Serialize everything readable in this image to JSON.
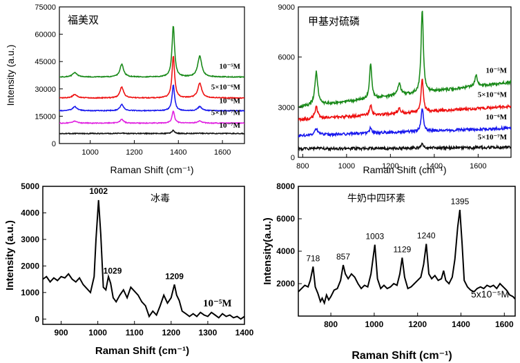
{
  "chart_data": [
    {
      "type": "line",
      "title": "福美双",
      "xlabel": "Raman Shift (cm⁻¹)",
      "ylabel": "Intensity (a.u.)",
      "xlim": [
        860,
        1700
      ],
      "ylim": [
        0,
        75000
      ],
      "xticks": [
        1000,
        1200,
        1400,
        1600
      ],
      "yticks": [
        0,
        15000,
        30000,
        45000,
        60000,
        75000
      ],
      "series": [
        {
          "name": "10⁻⁵M",
          "color": "#1a8a1a",
          "baseline": 36500,
          "peaks": [
            [
              930,
              2500,
              12
            ],
            [
              1143,
              7000,
              10
            ],
            [
              1377,
              28000,
              7
            ],
            [
              1497,
              11500,
              11
            ]
          ]
        },
        {
          "name": "5×10⁻⁶M",
          "color": "#ee1111",
          "baseline": 25000,
          "peaks": [
            [
              930,
              2000,
              12
            ],
            [
              1143,
              6000,
              10
            ],
            [
              1377,
              23000,
              7
            ],
            [
              1497,
              8000,
              11
            ]
          ]
        },
        {
          "name": "10⁻⁶M",
          "color": "#1a1aee",
          "baseline": 18000,
          "peaks": [
            [
              930,
              2200,
              12
            ],
            [
              1143,
              3500,
              10
            ],
            [
              1377,
              14000,
              7
            ],
            [
              1497,
              2200,
              11
            ]
          ]
        },
        {
          "name": "5×10⁻⁷M",
          "color": "#e020e0",
          "baseline": 11200,
          "peaks": [
            [
              930,
              1200,
              12
            ],
            [
              1143,
              2000,
              10
            ],
            [
              1377,
              6500,
              7
            ],
            [
              1497,
              1300,
              11
            ]
          ]
        },
        {
          "name": "10⁻⁷M",
          "color": "#111111",
          "baseline": 5500,
          "peaks": [
            [
              1143,
              300,
              10
            ],
            [
              1377,
              1800,
              7
            ],
            [
              1497,
              200,
              11
            ]
          ]
        }
      ]
    },
    {
      "type": "line",
      "title": "甲基对硫磷",
      "xlabel": "Raman Shift (cm⁻¹)",
      "ylabel": "",
      "xlim": [
        780,
        1750
      ],
      "ylim": [
        0,
        9000
      ],
      "xticks": [
        800,
        1000,
        1200,
        1400,
        1600
      ],
      "yticks": [
        0,
        3000,
        6000,
        9000
      ],
      "series": [
        {
          "name": "10⁻⁵M",
          "color": "#1a8a1a",
          "baseline": 3000,
          "slope": 1500,
          "peaks": [
            [
              862,
              2000,
              8
            ],
            [
              1110,
              2100,
              6
            ],
            [
              1240,
              700,
              8
            ],
            [
              1345,
              5000,
              6
            ],
            [
              1590,
              700,
              6
            ]
          ]
        },
        {
          "name": "5×10⁻⁶M",
          "color": "#ee1111",
          "baseline": 2250,
          "slope": 800,
          "peaks": [
            [
              862,
              700,
              8
            ],
            [
              1110,
              600,
              6
            ],
            [
              1240,
              300,
              8
            ],
            [
              1345,
              2000,
              6
            ]
          ]
        },
        {
          "name": "10⁻⁶M",
          "color": "#1a1aee",
          "baseline": 1300,
          "slope": 450,
          "peaks": [
            [
              862,
              400,
              8
            ],
            [
              1110,
              300,
              6
            ],
            [
              1345,
              1400,
              6
            ]
          ]
        },
        {
          "name": "5×10⁻⁷M",
          "color": "#111111",
          "baseline": 500,
          "slope": 100,
          "peaks": [
            [
              862,
              80,
              8
            ],
            [
              1345,
              250,
              6
            ]
          ]
        }
      ]
    },
    {
      "type": "line",
      "title": "冰毒",
      "xlabel": "Raman Shift (cm⁻¹)",
      "ylabel": "Intensity (a.u.)",
      "xlim": [
        850,
        1400
      ],
      "ylim": [
        -200,
        5000
      ],
      "xticks": [
        900,
        1000,
        1100,
        1200,
        1300,
        1400
      ],
      "yticks": [
        0,
        1000,
        2000,
        3000,
        4000,
        5000
      ],
      "annotation": "10⁻⁵M",
      "peak_labels": [
        {
          "label": "1002",
          "x": 1002,
          "y": 4500
        },
        {
          "label": "1029",
          "x": 1029,
          "y": 1500
        },
        {
          "label": "1209",
          "x": 1209,
          "y": 1300
        }
      ],
      "series": [
        {
          "name": "",
          "color": "#000000",
          "points": [
            [
              850,
              1500
            ],
            [
              860,
              1600
            ],
            [
              870,
              1400
            ],
            [
              880,
              1550
            ],
            [
              890,
              1450
            ],
            [
              900,
              1600
            ],
            [
              910,
              1550
            ],
            [
              920,
              1700
            ],
            [
              930,
              1500
            ],
            [
              940,
              1400
            ],
            [
              950,
              1550
            ],
            [
              960,
              1300
            ],
            [
              970,
              1150
            ],
            [
              980,
              1000
            ],
            [
              990,
              1600
            ],
            [
              995,
              3000
            ],
            [
              1002,
              4480
            ],
            [
              1008,
              3200
            ],
            [
              1015,
              1200
            ],
            [
              1022,
              1100
            ],
            [
              1029,
              1600
            ],
            [
              1035,
              1350
            ],
            [
              1042,
              800
            ],
            [
              1050,
              650
            ],
            [
              1060,
              900
            ],
            [
              1070,
              1100
            ],
            [
              1080,
              800
            ],
            [
              1090,
              1200
            ],
            [
              1100,
              1050
            ],
            [
              1110,
              900
            ],
            [
              1120,
              650
            ],
            [
              1130,
              500
            ],
            [
              1140,
              100
            ],
            [
              1150,
              300
            ],
            [
              1160,
              150
            ],
            [
              1170,
              500
            ],
            [
              1180,
              900
            ],
            [
              1190,
              600
            ],
            [
              1200,
              800
            ],
            [
              1209,
              1300
            ],
            [
              1215,
              900
            ],
            [
              1222,
              700
            ],
            [
              1230,
              300
            ],
            [
              1240,
              200
            ],
            [
              1250,
              100
            ],
            [
              1260,
              200
            ],
            [
              1270,
              100
            ],
            [
              1280,
              250
            ],
            [
              1290,
              150
            ],
            [
              1300,
              100
            ],
            [
              1310,
              250
            ],
            [
              1320,
              150
            ],
            [
              1330,
              50
            ],
            [
              1340,
              200
            ],
            [
              1350,
              100
            ],
            [
              1360,
              150
            ],
            [
              1370,
              50
            ],
            [
              1380,
              100
            ],
            [
              1390,
              0
            ],
            [
              1400,
              100
            ]
          ]
        }
      ]
    },
    {
      "type": "line",
      "title": "牛奶中四环素",
      "xlabel": "Raman Shift (cm⁻¹)",
      "ylabel": "Intensity(a.u.)",
      "xlim": [
        650,
        1650
      ],
      "ylim": [
        0,
        8000
      ],
      "xticks": [
        800,
        1000,
        1200,
        1400,
        1600
      ],
      "yticks": [
        2000,
        4000,
        6000,
        8000
      ],
      "annotation": "5x10⁻⁵M",
      "peak_labels": [
        {
          "label": "718",
          "x": 718,
          "y": 3050
        },
        {
          "label": "857",
          "x": 857,
          "y": 3150
        },
        {
          "label": "1003",
          "x": 1003,
          "y": 4400
        },
        {
          "label": "1129",
          "x": 1129,
          "y": 3600
        },
        {
          "label": "1240",
          "x": 1240,
          "y": 4450
        },
        {
          "label": "1395",
          "x": 1395,
          "y": 6550
        }
      ],
      "series": [
        {
          "name": "",
          "color": "#000000",
          "points": [
            [
              650,
              1500
            ],
            [
              665,
              1700
            ],
            [
              680,
              1900
            ],
            [
              695,
              1800
            ],
            [
              705,
              2200
            ],
            [
              718,
              3050
            ],
            [
              728,
              1800
            ],
            [
              740,
              1400
            ],
            [
              752,
              900
            ],
            [
              760,
              1100
            ],
            [
              770,
              800
            ],
            [
              780,
              1300
            ],
            [
              790,
              1000
            ],
            [
              800,
              1200
            ],
            [
              815,
              1600
            ],
            [
              830,
              1700
            ],
            [
              845,
              2200
            ],
            [
              857,
              3150
            ],
            [
              867,
              2600
            ],
            [
              880,
              2300
            ],
            [
              895,
              2600
            ],
            [
              910,
              2400
            ],
            [
              925,
              2000
            ],
            [
              940,
              1700
            ],
            [
              955,
              1900
            ],
            [
              970,
              1800
            ],
            [
              985,
              2600
            ],
            [
              1003,
              4400
            ],
            [
              1015,
              2300
            ],
            [
              1030,
              1700
            ],
            [
              1045,
              1900
            ],
            [
              1060,
              1700
            ],
            [
              1075,
              1800
            ],
            [
              1090,
              2000
            ],
            [
              1105,
              1900
            ],
            [
              1118,
              2600
            ],
            [
              1129,
              3600
            ],
            [
              1140,
              2400
            ],
            [
              1155,
              1700
            ],
            [
              1170,
              1800
            ],
            [
              1185,
              2000
            ],
            [
              1200,
              2200
            ],
            [
              1215,
              2400
            ],
            [
              1228,
              3200
            ],
            [
              1240,
              4450
            ],
            [
              1252,
              2600
            ],
            [
              1265,
              2300
            ],
            [
              1280,
              2500
            ],
            [
              1295,
              2200
            ],
            [
              1310,
              2300
            ],
            [
              1320,
              2800
            ],
            [
              1330,
              2200
            ],
            [
              1345,
              2000
            ],
            [
              1360,
              2400
            ],
            [
              1372,
              3500
            ],
            [
              1385,
              5500
            ],
            [
              1395,
              6550
            ],
            [
              1405,
              4500
            ],
            [
              1415,
              2200
            ],
            [
              1430,
              1800
            ],
            [
              1445,
              1600
            ],
            [
              1460,
              1500
            ],
            [
              1475,
              1700
            ],
            [
              1490,
              1800
            ],
            [
              1505,
              1700
            ],
            [
              1520,
              1900
            ],
            [
              1535,
              1800
            ],
            [
              1550,
              1900
            ],
            [
              1565,
              1700
            ],
            [
              1580,
              2000
            ],
            [
              1595,
              1800
            ],
            [
              1610,
              1600
            ],
            [
              1625,
              1300
            ],
            [
              1640,
              1200
            ],
            [
              1650,
              1050
            ]
          ]
        }
      ]
    }
  ]
}
